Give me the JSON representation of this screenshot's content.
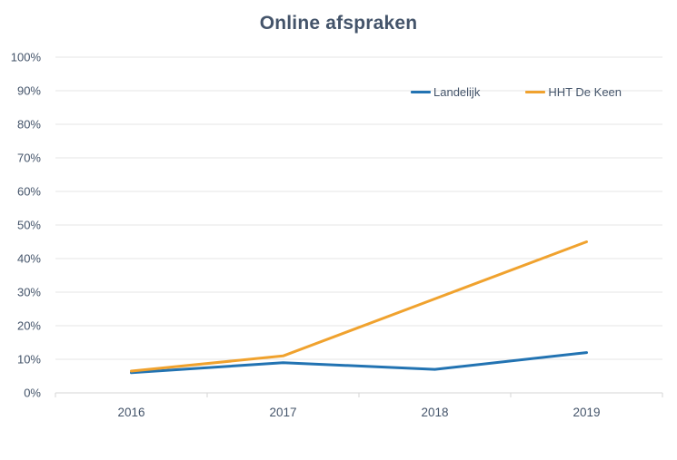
{
  "chart_data": {
    "type": "line",
    "title": "Online afspraken",
    "categories": [
      "2016",
      "2017",
      "2018",
      "2019"
    ],
    "series": [
      {
        "name": "Landelijk",
        "color": "#2273B2",
        "values": [
          6,
          9,
          7,
          12
        ]
      },
      {
        "name": "HHT De Keen",
        "color": "#F0A22E",
        "values": [
          6.5,
          11,
          28,
          45
        ]
      }
    ],
    "xlabel": "",
    "ylabel": "",
    "ylim": [
      0,
      100
    ],
    "ytick_step": 10,
    "ytick_labels": [
      "0%",
      "10%",
      "20%",
      "30%",
      "40%",
      "50%",
      "60%",
      "70%",
      "80%",
      "90%",
      "100%"
    ],
    "grid": true,
    "legend_position": "top-right-inside",
    "colors": {
      "title": "#44546A",
      "tick_labels": "#44546A",
      "gridline": "#E4E4E4",
      "axis_line": "#D6D6D6",
      "background": "#FFFFFF"
    }
  }
}
